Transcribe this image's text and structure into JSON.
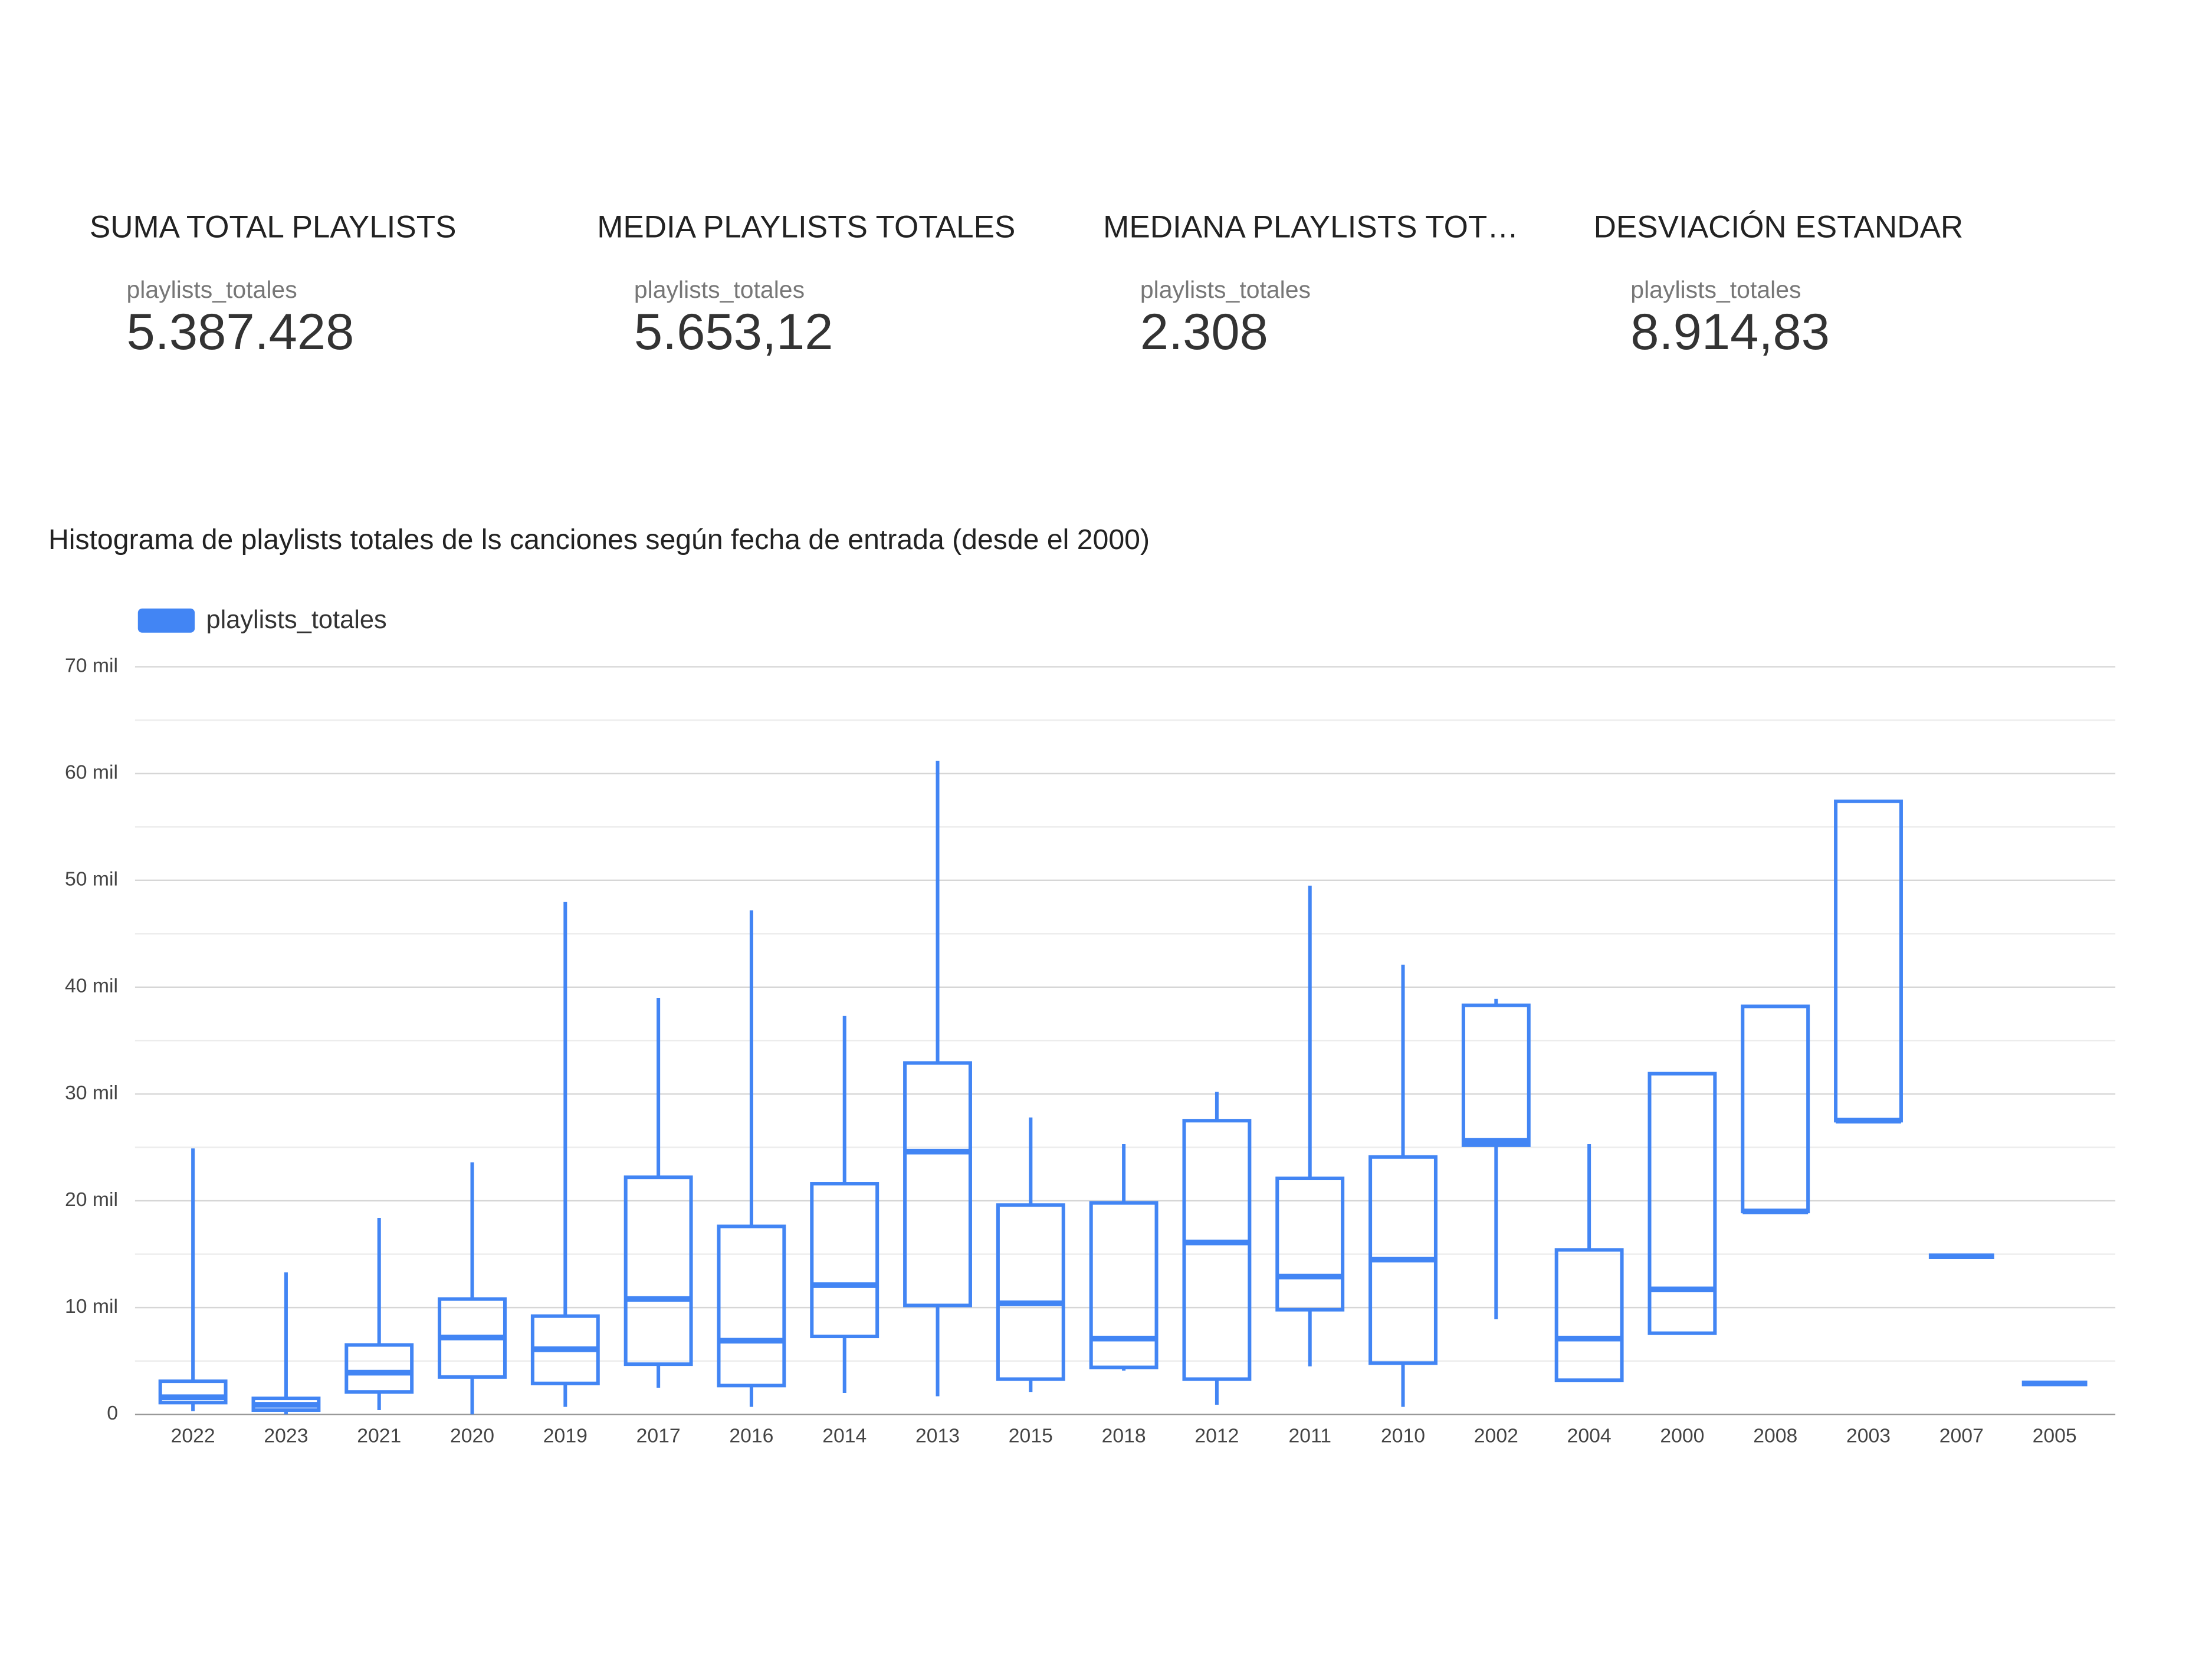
{
  "scorecards": [
    {
      "title": "SUMA TOTAL PLAYLISTS",
      "metric": "playlists_totales",
      "value": "5.387.428"
    },
    {
      "title": "MEDIA PLAYLISTS TOTALES",
      "metric": "playlists_totales",
      "value": "5.653,12"
    },
    {
      "title": "MEDIANA PLAYLISTS TOT…",
      "metric": "playlists_totales",
      "value": "2.308"
    },
    {
      "title": "DESVIACIÓN ESTANDAR",
      "metric": "playlists_totales",
      "value": "8.914,83"
    }
  ],
  "chart_data": {
    "type": "boxplot",
    "title": "Histograma de playlists totales de ls canciones según fecha de entrada (desde el 2000)",
    "categories": [
      "2022",
      "2023",
      "2021",
      "2020",
      "2019",
      "2017",
      "2016",
      "2014",
      "2013",
      "2015",
      "2018",
      "2012",
      "2011",
      "2010",
      "2002",
      "2004",
      "2000",
      "2008",
      "2003",
      "2007",
      "2005"
    ],
    "series": [
      {
        "name": "playlists_totales",
        "color": "#4285f4",
        "min": [
          300,
          0,
          400,
          0,
          700,
          2500,
          700,
          2000,
          1700,
          2100,
          4100,
          900,
          4500,
          700,
          8900,
          3200,
          7600,
          19000,
          27500,
          14800,
          2900
        ],
        "q1": [
          1100,
          400,
          2100,
          3500,
          2900,
          4700,
          2700,
          7300,
          10200,
          3300,
          4400,
          3300,
          9800,
          4800,
          25200,
          3200,
          7600,
          19000,
          27500,
          14800,
          2900
        ],
        "median": [
          1600,
          900,
          3900,
          7200,
          6100,
          10800,
          6900,
          12100,
          24600,
          10400,
          7100,
          16100,
          12900,
          14500,
          25600,
          7100,
          11700,
          19000,
          27500,
          14800,
          2900
        ],
        "q3": [
          3100,
          1500,
          6500,
          10800,
          9200,
          22200,
          17600,
          21600,
          32900,
          19600,
          19800,
          27500,
          22100,
          24100,
          38300,
          15400,
          31900,
          38200,
          57400,
          14800,
          2900
        ],
        "max": [
          24900,
          13300,
          18400,
          23600,
          48000,
          39000,
          47200,
          37300,
          61200,
          27800,
          25300,
          30200,
          49500,
          42100,
          38900,
          25300,
          31900,
          38200,
          57400,
          14800,
          2900
        ]
      }
    ],
    "ylim": [
      0,
      70000
    ],
    "yticks": [
      {
        "value": 0,
        "label": "0"
      },
      {
        "value": 10000,
        "label": "10 mil"
      },
      {
        "value": 20000,
        "label": "20 mil"
      },
      {
        "value": 30000,
        "label": "30 mil"
      },
      {
        "value": 40000,
        "label": "40 mil"
      },
      {
        "value": 50000,
        "label": "50 mil"
      },
      {
        "value": 60000,
        "label": "60 mil"
      },
      {
        "value": 70000,
        "label": "70 mil"
      }
    ],
    "minor_yticks": [
      5000,
      15000,
      25000,
      35000,
      45000,
      55000,
      65000
    ],
    "grid": true,
    "legend": "top-left"
  }
}
